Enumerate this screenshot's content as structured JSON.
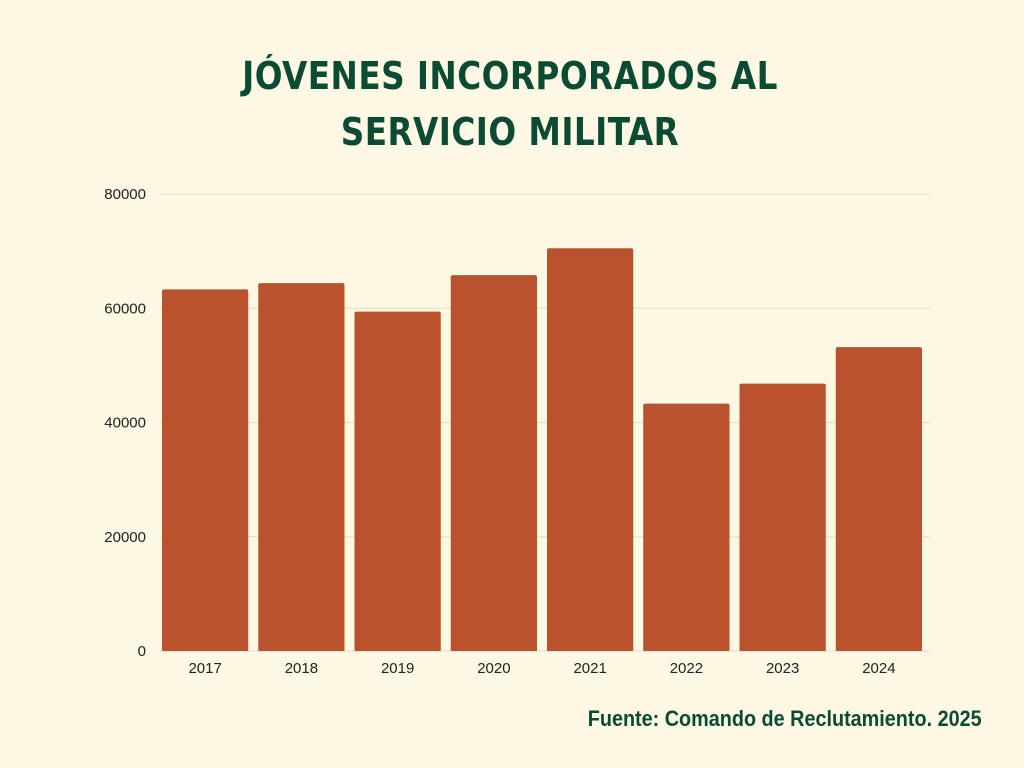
{
  "chart_data": {
    "type": "bar",
    "title": "JÓVENES INCORPORADOS AL SERVICIO MILITAR",
    "categories": [
      "2017",
      "2018",
      "2019",
      "2020",
      "2021",
      "2022",
      "2023",
      "2024"
    ],
    "values": [
      63300,
      64400,
      59400,
      65800,
      70500,
      43300,
      46800,
      53200
    ],
    "xlabel": "",
    "ylabel": "",
    "ylim": [
      0,
      80000
    ],
    "yticks": [
      0,
      20000,
      40000,
      60000,
      80000
    ],
    "grid": true,
    "bar_color": "#b9522d",
    "source": "Fuente: Comando de Reclutamiento. 2025"
  },
  "colors": {
    "background": "#fdf8e4",
    "title": "#0b4a33",
    "bar": "#b9522d",
    "grid": "#e4ddc6"
  }
}
